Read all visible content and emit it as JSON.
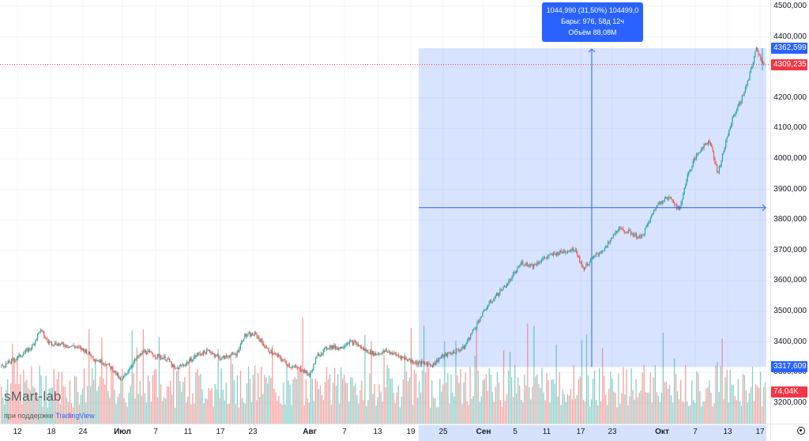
{
  "chart_data": {
    "type": "candlestick",
    "price_ticks": [
      "4500,000",
      "4400,000",
      "4300,000",
      "4200,000",
      "4100,000",
      "4000,000",
      "3900,000",
      "3800,000",
      "3700,000",
      "3600,000",
      "3500,000",
      "3400,000",
      "3300,000",
      "3200,000"
    ],
    "price_tick_values": [
      4500,
      4400,
      4300,
      4200,
      4100,
      4000,
      3900,
      3800,
      3700,
      3600,
      3500,
      3400,
      3300,
      3200
    ],
    "y_range": [
      3170,
      4520
    ],
    "time_labels": [
      {
        "text": "12",
        "major": false
      },
      {
        "text": "18",
        "major": false
      },
      {
        "text": "24",
        "major": false
      },
      {
        "text": "Июл",
        "major": true
      },
      {
        "text": "7",
        "major": false
      },
      {
        "text": "11",
        "major": false
      },
      {
        "text": "17",
        "major": false
      },
      {
        "text": "23",
        "major": false
      },
      {
        "text": "Авг",
        "major": true
      },
      {
        "text": "7",
        "major": false
      },
      {
        "text": "13",
        "major": false
      },
      {
        "text": "19",
        "major": false
      },
      {
        "text": "25",
        "major": false
      },
      {
        "text": "Сен",
        "major": true
      },
      {
        "text": "5",
        "major": false
      },
      {
        "text": "11",
        "major": false
      },
      {
        "text": "17",
        "major": false
      },
      {
        "text": "23",
        "major": false
      },
      {
        "text": "Окт",
        "major": true
      },
      {
        "text": "7",
        "major": false
      },
      {
        "text": "13",
        "major": false
      },
      {
        "text": "17",
        "major": false
      }
    ],
    "price_path": [
      [
        0,
        3320
      ],
      [
        1.5,
        3340
      ],
      [
        3,
        3365
      ],
      [
        4,
        3385
      ],
      [
        5,
        3440
      ],
      [
        6,
        3400
      ],
      [
        8,
        3390
      ],
      [
        9.5,
        3385
      ],
      [
        11,
        3370
      ],
      [
        12,
        3345
      ],
      [
        13.5,
        3330
      ],
      [
        14.5,
        3310
      ],
      [
        15.5,
        3270
      ],
      [
        17,
        3330
      ],
      [
        18.5,
        3370
      ],
      [
        20,
        3355
      ],
      [
        21.5,
        3345
      ],
      [
        22.5,
        3310
      ],
      [
        24,
        3330
      ],
      [
        25.5,
        3360
      ],
      [
        27,
        3370
      ],
      [
        28.5,
        3345
      ],
      [
        29.5,
        3355
      ],
      [
        30.5,
        3360
      ],
      [
        31.5,
        3420
      ],
      [
        33,
        3425
      ],
      [
        34.5,
        3375
      ],
      [
        36,
        3350
      ],
      [
        37.5,
        3320
      ],
      [
        39,
        3310
      ],
      [
        40,
        3290
      ],
      [
        41,
        3355
      ],
      [
        42.5,
        3385
      ],
      [
        44,
        3380
      ],
      [
        45,
        3400
      ],
      [
        46,
        3395
      ],
      [
        47,
        3375
      ],
      [
        48.5,
        3360
      ],
      [
        50,
        3370
      ],
      [
        51.5,
        3355
      ],
      [
        53,
        3340
      ],
      [
        54,
        3330
      ],
      [
        55,
        3330
      ],
      [
        56,
        3325
      ],
      [
        57,
        3350
      ],
      [
        58.5,
        3365
      ],
      [
        60,
        3380
      ],
      [
        61.5,
        3450
      ],
      [
        63,
        3515
      ],
      [
        64.5,
        3560
      ],
      [
        66,
        3600
      ],
      [
        67.5,
        3660
      ],
      [
        69,
        3650
      ],
      [
        70.5,
        3675
      ],
      [
        72,
        3690
      ],
      [
        73.5,
        3700
      ],
      [
        74.5,
        3705
      ],
      [
        75.5,
        3640
      ],
      [
        77,
        3680
      ],
      [
        78.5,
        3710
      ],
      [
        80,
        3770
      ],
      [
        81.5,
        3760
      ],
      [
        83,
        3740
      ],
      [
        84,
        3790
      ],
      [
        85,
        3845
      ],
      [
        86,
        3870
      ],
      [
        87,
        3870
      ],
      [
        88,
        3830
      ],
      [
        89,
        3940
      ],
      [
        90,
        4000
      ],
      [
        91,
        4040
      ],
      [
        92,
        4060
      ],
      [
        93,
        3950
      ],
      [
        94,
        4050
      ],
      [
        95,
        4140
      ],
      [
        96,
        4190
      ],
      [
        97,
        4260
      ],
      [
        98,
        4362
      ],
      [
        99,
        4309
      ]
    ],
    "last_price": "4309,235",
    "last_price_value": 4309.235,
    "measure": {
      "start_label": "3317,609",
      "start_value": 3317.609,
      "end_label": "4362,599",
      "end_value": 4362.599,
      "line1": "1044,990 (31,50%) 104499,0",
      "line2": "Бары: 976, 58д 12ч",
      "line3": "Объём 88,08M"
    },
    "volume_label": "74,04K",
    "colors": {
      "up": "#26a69a",
      "down": "#ef5350",
      "measure_fill": "#2962ff",
      "last_price": "#f23645",
      "grid": "#f0f3fa"
    }
  },
  "branding": {
    "watermark": "sMart-lab",
    "support_prefix": "при поддержке",
    "support_brand": "TradingView"
  },
  "settings_icon": "gear-icon"
}
